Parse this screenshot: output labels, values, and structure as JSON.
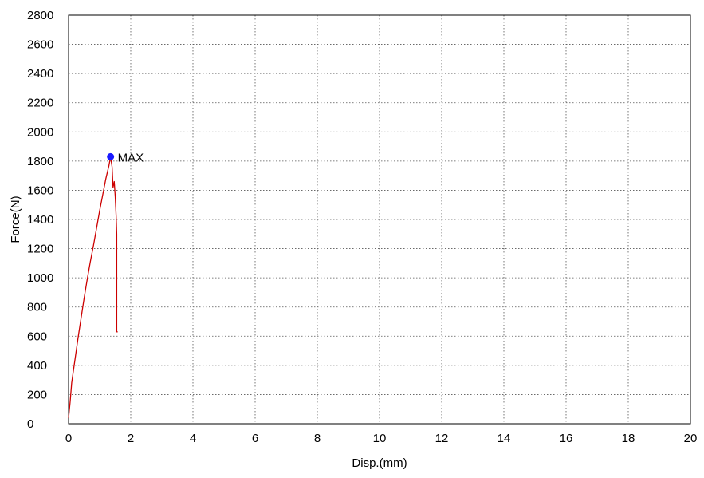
{
  "chart_data": {
    "type": "line",
    "title": "",
    "xlabel": "Disp.(mm)",
    "ylabel": "Force(N)",
    "xlim": [
      0,
      20
    ],
    "ylim": [
      0,
      2800
    ],
    "x_ticks": [
      0,
      2,
      4,
      6,
      8,
      10,
      12,
      14,
      16,
      18,
      20
    ],
    "y_ticks": [
      0,
      200,
      400,
      600,
      800,
      1000,
      1200,
      1400,
      1600,
      1800,
      2000,
      2200,
      2400,
      2600,
      2800
    ],
    "x_tick_labels": [
      "0",
      "2",
      "4",
      "6",
      "8",
      "10",
      "12",
      "14",
      "16",
      "18",
      "20"
    ],
    "y_tick_labels": [
      "0",
      "200",
      "400",
      "600",
      "800",
      "1000",
      "1200",
      "1400",
      "1600",
      "1800",
      "2000",
      "2200",
      "2400",
      "2600",
      "2800"
    ],
    "grid": true,
    "series": [
      {
        "color": "#cc0000",
        "points": [
          [
            0.0,
            40
          ],
          [
            0.05,
            150
          ],
          [
            0.1,
            280
          ],
          [
            0.2,
            430
          ],
          [
            0.3,
            580
          ],
          [
            0.4,
            720
          ],
          [
            0.5,
            860
          ],
          [
            0.6,
            990
          ],
          [
            0.7,
            1110
          ],
          [
            0.8,
            1220
          ],
          [
            0.9,
            1340
          ],
          [
            1.0,
            1460
          ],
          [
            1.1,
            1570
          ],
          [
            1.2,
            1680
          ],
          [
            1.3,
            1770
          ],
          [
            1.35,
            1830
          ],
          [
            1.4,
            1760
          ],
          [
            1.43,
            1620
          ],
          [
            1.47,
            1660
          ],
          [
            1.5,
            1560
          ],
          [
            1.53,
            1420
          ],
          [
            1.55,
            1300
          ],
          [
            1.55,
            630
          ],
          [
            1.58,
            630
          ]
        ]
      }
    ],
    "annotations": [
      {
        "label": "MAX",
        "x": 1.35,
        "y": 1830,
        "marker_color": "#1a1aff"
      }
    ]
  }
}
